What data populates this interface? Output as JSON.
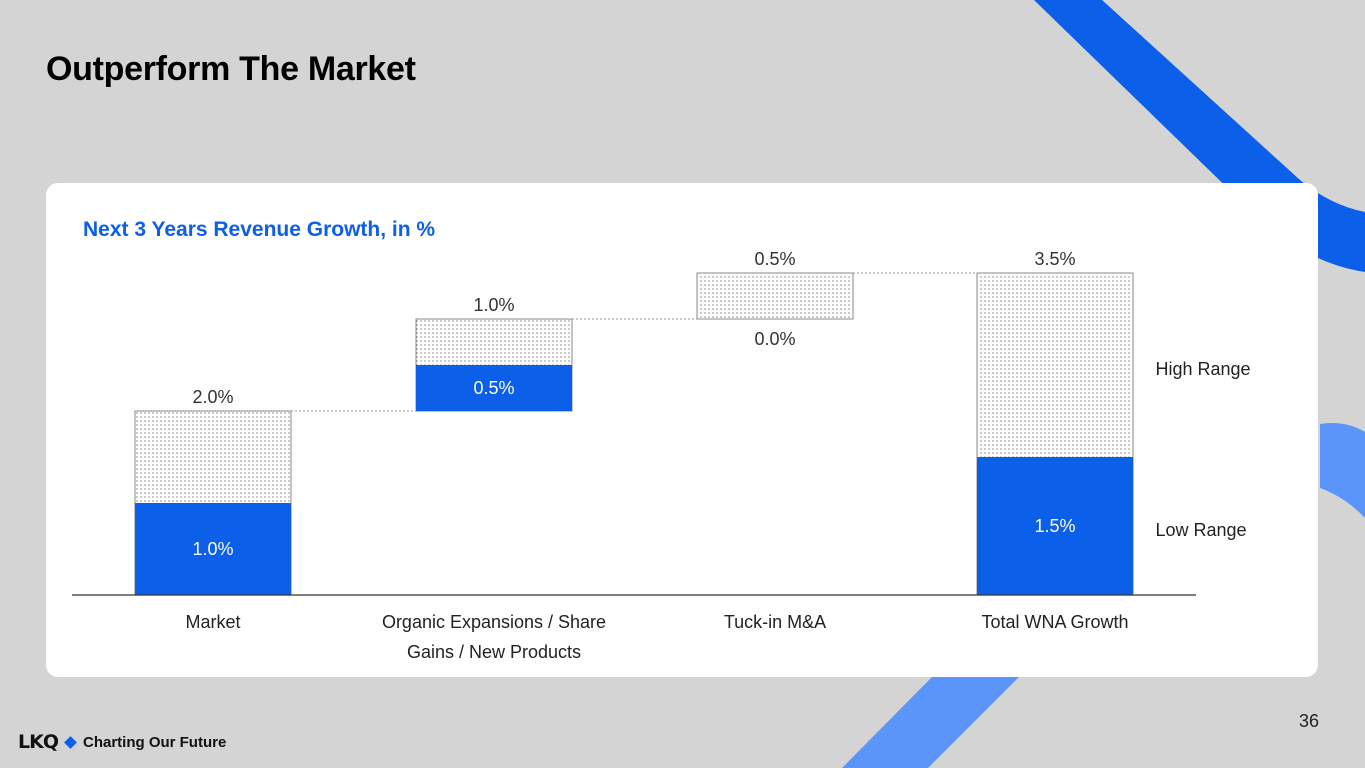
{
  "slide": {
    "title": "Outperform The Market",
    "page_number": "36",
    "logo_text": "LKQ",
    "tagline": "Charting Our Future",
    "colors": {
      "accent": "#0b5fe8",
      "accent_light": "#5b95f9",
      "background": "#d4d4d4",
      "card": "#ffffff"
    }
  },
  "chart_data": {
    "type": "waterfall",
    "title": "Next 3 Years Revenue Growth, in %",
    "categories": [
      "Market",
      "Organic Expansions / Share Gains / New Products",
      "Tuck-in M&A",
      "Total WNA Growth"
    ],
    "category_lines": [
      [
        "Market"
      ],
      [
        "Organic Expansions / Share",
        "Gains / New Products"
      ],
      [
        "Tuck-in M&A"
      ],
      [
        "Total WNA Growth"
      ]
    ],
    "series": [
      {
        "name": "Low Range",
        "values": [
          1.0,
          0.5,
          0.0,
          1.5
        ]
      },
      {
        "name": "High Range",
        "values": [
          2.0,
          1.0,
          0.5,
          3.5
        ]
      }
    ],
    "bases": [
      0,
      2.0,
      3.0,
      0
    ],
    "labels": {
      "high": [
        "2.0%",
        "1.0%",
        "0.5%",
        "3.5%"
      ],
      "low": [
        "1.0%",
        "0.5%",
        "0.0%",
        "1.5%"
      ]
    },
    "legend": [
      "High Range",
      "Low Range"
    ],
    "ylim": [
      0,
      3.5
    ]
  }
}
